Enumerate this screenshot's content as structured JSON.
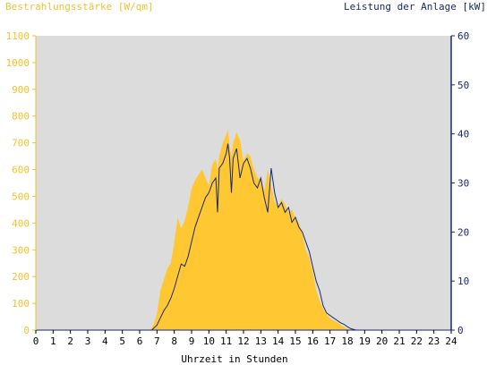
{
  "colors": {
    "plot_bg": "#dcdcdc",
    "irradiance": "#ffc832",
    "power": "#1a2a6c",
    "left_axis": "#f2c12e",
    "right_axis": "#1a2a6c"
  },
  "chart_data": {
    "type": "area",
    "left_axis_label": "Bestrahlungsstärke [W/qm]",
    "right_axis_label": "Leistung der Anlage [kW]",
    "xlabel": "Uhrzeit in Stunden",
    "xlim": [
      0,
      24
    ],
    "ylim_left": [
      0,
      1100
    ],
    "ylim_right": [
      0,
      60
    ],
    "x_ticks": [
      "0",
      "1",
      "2",
      "3",
      "4",
      "5",
      "6",
      "7",
      "8",
      "9",
      "10",
      "11",
      "12",
      "13",
      "14",
      "15",
      "16",
      "17",
      "18",
      "19",
      "20",
      "21",
      "22",
      "23",
      "24"
    ],
    "y_left_ticks": [
      "0",
      "100",
      "200",
      "300",
      "400",
      "500",
      "600",
      "700",
      "800",
      "900",
      "1000",
      "1100"
    ],
    "y_right_ticks": [
      "0",
      "10",
      "20",
      "30",
      "40",
      "50",
      "60"
    ],
    "series": [
      {
        "name": "Bestrahlungsstärke",
        "axis": "left",
        "x": [
          0,
          6.6,
          6.8,
          7.0,
          7.2,
          7.4,
          7.6,
          7.8,
          8.0,
          8.2,
          8.4,
          8.6,
          8.8,
          9.0,
          9.2,
          9.4,
          9.6,
          9.8,
          10.0,
          10.2,
          10.4,
          10.5,
          10.6,
          10.8,
          11.0,
          11.1,
          11.2,
          11.3,
          11.4,
          11.5,
          11.6,
          11.8,
          12.0,
          12.2,
          12.4,
          12.6,
          12.8,
          13.0,
          13.2,
          13.4,
          13.6,
          13.8,
          14.0,
          14.2,
          14.4,
          14.6,
          14.8,
          15.0,
          15.2,
          15.4,
          15.6,
          15.8,
          16.0,
          16.2,
          16.4,
          16.6,
          16.8,
          17.0,
          17.2,
          17.4,
          17.6,
          17.8,
          18.0,
          18.2,
          18.5,
          24
        ],
        "values": [
          0,
          0,
          20,
          60,
          150,
          190,
          230,
          250,
          330,
          420,
          380,
          410,
          460,
          530,
          560,
          580,
          600,
          570,
          540,
          620,
          640,
          600,
          650,
          700,
          730,
          750,
          690,
          650,
          700,
          720,
          740,
          710,
          630,
          660,
          650,
          600,
          570,
          560,
          520,
          600,
          540,
          480,
          460,
          490,
          470,
          440,
          450,
          420,
          400,
          360,
          300,
          270,
          220,
          150,
          110,
          80,
          60,
          45,
          35,
          30,
          20,
          12,
          5,
          0,
          0,
          0
        ]
      },
      {
        "name": "Leistung der Anlage",
        "axis": "right",
        "x": [
          0,
          6.7,
          7.0,
          7.2,
          7.4,
          7.6,
          7.8,
          8.0,
          8.2,
          8.4,
          8.6,
          8.8,
          9.0,
          9.2,
          9.4,
          9.6,
          9.8,
          10.0,
          10.1,
          10.2,
          10.4,
          10.5,
          10.6,
          10.8,
          11.0,
          11.1,
          11.2,
          11.3,
          11.4,
          11.6,
          11.8,
          12.0,
          12.2,
          12.4,
          12.6,
          12.8,
          13.0,
          13.2,
          13.4,
          13.6,
          13.8,
          14.0,
          14.2,
          14.4,
          14.6,
          14.8,
          15.0,
          15.2,
          15.4,
          15.6,
          15.8,
          16.0,
          16.2,
          16.4,
          16.6,
          16.8,
          17.0,
          17.2,
          17.4,
          17.6,
          17.8,
          18.0,
          18.2,
          18.5,
          24
        ],
        "values": [
          0,
          0,
          1,
          2.5,
          4,
          5,
          6.5,
          8.5,
          11,
          13.5,
          13,
          15,
          18,
          21,
          23,
          25,
          27,
          28,
          29,
          30,
          31,
          24,
          33,
          34,
          36,
          38,
          35,
          28,
          35,
          37,
          31,
          34,
          35,
          33,
          30,
          29,
          31,
          27,
          24,
          33,
          28,
          25,
          26,
          24,
          25,
          22,
          23,
          21,
          20,
          18,
          16,
          13,
          10,
          8,
          5,
          3.5,
          3,
          2.5,
          2,
          1.5,
          1.2,
          0.7,
          0.3,
          0,
          0
        ]
      }
    ],
    "grid": false
  }
}
